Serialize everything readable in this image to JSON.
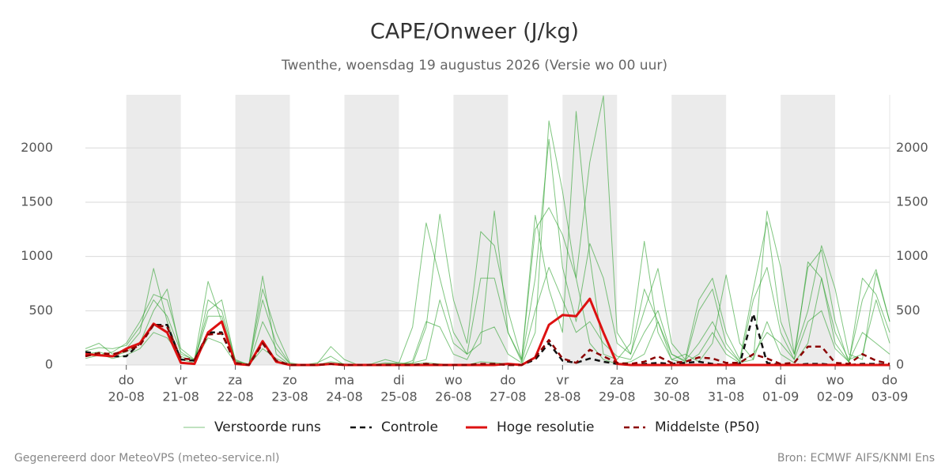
{
  "chart_data": {
    "type": "line",
    "title": "CAPE/Onweer (J/kg)",
    "subtitle": "Twenthe, woensdag 19 augustus 2026 (Versie wo 00 uur)",
    "footer_left": "Gegenereerd door MeteoVPS (meteo-service.nl)",
    "footer_right": "Bron: ECMWF AIFS/KNMI Ens",
    "x": [
      "2026-08-19T06:00",
      "2026-08-19T12:00",
      "2026-08-19T18:00",
      "2026-08-20T00:00",
      "2026-08-20T06:00",
      "2026-08-20T12:00",
      "2026-08-20T18:00",
      "2026-08-21T00:00",
      "2026-08-21T06:00",
      "2026-08-21T12:00",
      "2026-08-21T18:00",
      "2026-08-22T00:00",
      "2026-08-22T06:00",
      "2026-08-22T12:00",
      "2026-08-22T18:00",
      "2026-08-23T00:00",
      "2026-08-23T06:00",
      "2026-08-23T12:00",
      "2026-08-23T18:00",
      "2026-08-24T00:00",
      "2026-08-24T06:00",
      "2026-08-24T12:00",
      "2026-08-24T18:00",
      "2026-08-25T00:00",
      "2026-08-25T06:00",
      "2026-08-25T12:00",
      "2026-08-25T18:00",
      "2026-08-26T00:00",
      "2026-08-26T06:00",
      "2026-08-26T12:00",
      "2026-08-26T18:00",
      "2026-08-27T00:00",
      "2026-08-27T06:00",
      "2026-08-27T12:00",
      "2026-08-27T18:00",
      "2026-08-28T00:00",
      "2026-08-28T06:00",
      "2026-08-28T12:00",
      "2026-08-28T18:00",
      "2026-08-29T00:00",
      "2026-08-29T06:00",
      "2026-08-29T12:00",
      "2026-08-29T18:00",
      "2026-08-30T00:00",
      "2026-08-30T06:00",
      "2026-08-30T12:00",
      "2026-08-30T18:00",
      "2026-08-31T00:00",
      "2026-08-31T06:00",
      "2026-08-31T12:00",
      "2026-08-31T18:00",
      "2026-09-01T00:00",
      "2026-09-01T06:00",
      "2026-09-01T12:00",
      "2026-09-01T18:00",
      "2026-09-02T00:00",
      "2026-09-02T06:00",
      "2026-09-02T12:00",
      "2026-09-02T18:00",
      "2026-09-03T00:00"
    ],
    "xlim": [
      "2026-08-19T06:00",
      "2026-09-03T00:00"
    ],
    "xticks": [
      {
        "value": "2026-08-20T00:00",
        "label": "20-08"
      },
      {
        "value": "2026-08-21T00:00",
        "label": "21-08"
      },
      {
        "value": "2026-08-22T00:00",
        "label": "22-08"
      },
      {
        "value": "2026-08-23T00:00",
        "label": "23-08"
      },
      {
        "value": "2026-08-24T00:00",
        "label": "24-08"
      },
      {
        "value": "2026-08-25T00:00",
        "label": "25-08"
      },
      {
        "value": "2026-08-26T00:00",
        "label": "26-08"
      },
      {
        "value": "2026-08-27T00:00",
        "label": "27-08"
      },
      {
        "value": "2026-08-28T00:00",
        "label": "28-08"
      },
      {
        "value": "2026-08-29T00:00",
        "label": "29-08"
      },
      {
        "value": "2026-08-30T00:00",
        "label": "30-08"
      },
      {
        "value": "2026-08-31T00:00",
        "label": "31-08"
      },
      {
        "value": "2026-09-01T00:00",
        "label": "01-09"
      },
      {
        "value": "2026-09-02T00:00",
        "label": "02-09"
      },
      {
        "value": "2026-09-03T00:00",
        "label": "03-09"
      }
    ],
    "xtick_days": [
      "do",
      "vr",
      "za",
      "zo",
      "ma",
      "di",
      "wo",
      "do",
      "vr",
      "za",
      "zo",
      "ma",
      "di",
      "wo",
      "do"
    ],
    "ylim": [
      0,
      2490
    ],
    "yticks": [
      0,
      500,
      1000,
      1500,
      2000
    ],
    "grid": true,
    "legend": "bottom",
    "series": [
      {
        "name": "Verstoorde runs",
        "color": "#2ca02c",
        "style": "thin",
        "values": [
          150,
          200,
          100,
          150,
          300,
          890,
          400,
          50,
          20,
          600,
          500,
          50,
          0,
          820,
          100,
          0,
          0,
          0,
          10,
          0,
          0,
          0,
          0,
          0,
          10,
          20,
          10,
          0,
          0,
          30,
          20,
          10,
          0,
          300,
          2250,
          1600,
          800,
          200,
          50,
          10,
          30,
          100,
          400,
          50,
          20,
          100,
          300,
          100,
          20,
          50,
          400,
          100,
          20,
          200,
          800,
          300,
          50,
          100,
          600,
          200
        ]
      },
      {
        "color": "#2ca02c",
        "style": "thin",
        "values": [
          100,
          120,
          80,
          120,
          200,
          500,
          700,
          100,
          50,
          770,
          400,
          20,
          0,
          600,
          200,
          10,
          0,
          10,
          170,
          50,
          0,
          0,
          10,
          20,
          350,
          1310,
          800,
          300,
          100,
          200,
          1420,
          300,
          50,
          1380,
          700,
          300,
          2337,
          1000,
          100,
          50,
          200,
          1140,
          300,
          50,
          100,
          30,
          200,
          830,
          200,
          50,
          1420,
          900,
          100,
          500,
          1100,
          700,
          100,
          50,
          850,
          400
        ]
      },
      {
        "color": "#2ca02c",
        "style": "thin",
        "values": [
          60,
          90,
          120,
          200,
          400,
          650,
          600,
          150,
          50,
          500,
          600,
          30,
          10,
          700,
          300,
          20,
          0,
          0,
          10,
          0,
          0,
          10,
          50,
          20,
          10,
          350,
          1390,
          600,
          200,
          1230,
          1100,
          500,
          50,
          1250,
          1450,
          1200,
          800,
          1870,
          2480,
          300,
          100,
          500,
          890,
          200,
          50,
          600,
          800,
          300,
          50,
          700,
          1320,
          400,
          100,
          900,
          1060,
          400,
          20,
          800,
          650,
          300
        ]
      },
      {
        "color": "#2ca02c",
        "style": "thin",
        "values": [
          80,
          100,
          60,
          90,
          150,
          300,
          250,
          80,
          30,
          250,
          200,
          20,
          0,
          150,
          60,
          0,
          0,
          20,
          80,
          0,
          0,
          0,
          0,
          0,
          40,
          400,
          350,
          100,
          50,
          300,
          350,
          100,
          20,
          500,
          900,
          600,
          300,
          400,
          200,
          80,
          50,
          300,
          500,
          100,
          40,
          200,
          400,
          150,
          30,
          100,
          300,
          200,
          50,
          400,
          500,
          150,
          30,
          300,
          200,
          100
        ]
      },
      {
        "color": "#2ca02c",
        "style": "thin",
        "values": [
          130,
          160,
          150,
          180,
          350,
          600,
          450,
          120,
          40,
          450,
          450,
          40,
          0,
          400,
          150,
          10,
          0,
          0,
          30,
          10,
          0,
          0,
          20,
          10,
          20,
          50,
          600,
          200,
          100,
          800,
          800,
          300,
          30,
          800,
          2080,
          900,
          400,
          1120,
          800,
          200,
          100,
          700,
          400,
          100,
          30,
          500,
          700,
          200,
          30,
          600,
          900,
          300,
          50,
          950,
          800,
          200,
          30,
          600,
          880,
          400
        ]
      },
      {
        "name": "Controle",
        "color": "#111111",
        "style": "dashed",
        "values": [
          120,
          100,
          80,
          80,
          200,
          370,
          370,
          50,
          40,
          300,
          300,
          10,
          0,
          200,
          30,
          0,
          0,
          0,
          10,
          0,
          0,
          0,
          0,
          0,
          0,
          10,
          0,
          0,
          0,
          0,
          10,
          0,
          0,
          50,
          200,
          40,
          20,
          60,
          30,
          10,
          0,
          10,
          20,
          10,
          20,
          30,
          10,
          0,
          10,
          470,
          20,
          0,
          0,
          10,
          10,
          0,
          0,
          10,
          10,
          0
        ]
      },
      {
        "name": "Hoge resolutie",
        "color": "#dd1111",
        "style": "bold",
        "values": [
          100,
          90,
          80,
          150,
          200,
          380,
          300,
          20,
          10,
          300,
          400,
          10,
          0,
          220,
          30,
          0,
          0,
          0,
          10,
          0,
          0,
          0,
          0,
          0,
          0,
          0,
          0,
          0,
          0,
          0,
          0,
          10,
          0,
          70,
          370,
          460,
          450,
          610,
          300,
          10,
          0,
          0,
          0,
          0,
          0,
          0,
          0,
          0,
          0,
          0,
          0,
          0,
          0,
          0,
          0,
          0,
          0,
          0,
          0,
          0
        ]
      },
      {
        "name": "Middelste (P50)",
        "color": "#8b0000",
        "style": "dashed",
        "values": [
          80,
          110,
          100,
          130,
          180,
          370,
          350,
          60,
          50,
          280,
          290,
          20,
          0,
          200,
          40,
          0,
          0,
          0,
          10,
          0,
          0,
          0,
          0,
          0,
          0,
          10,
          0,
          0,
          0,
          10,
          10,
          0,
          0,
          70,
          230,
          60,
          20,
          140,
          80,
          20,
          10,
          30,
          80,
          20,
          30,
          70,
          60,
          20,
          20,
          100,
          60,
          10,
          20,
          170,
          170,
          20,
          10,
          100,
          40,
          10
        ]
      }
    ]
  }
}
